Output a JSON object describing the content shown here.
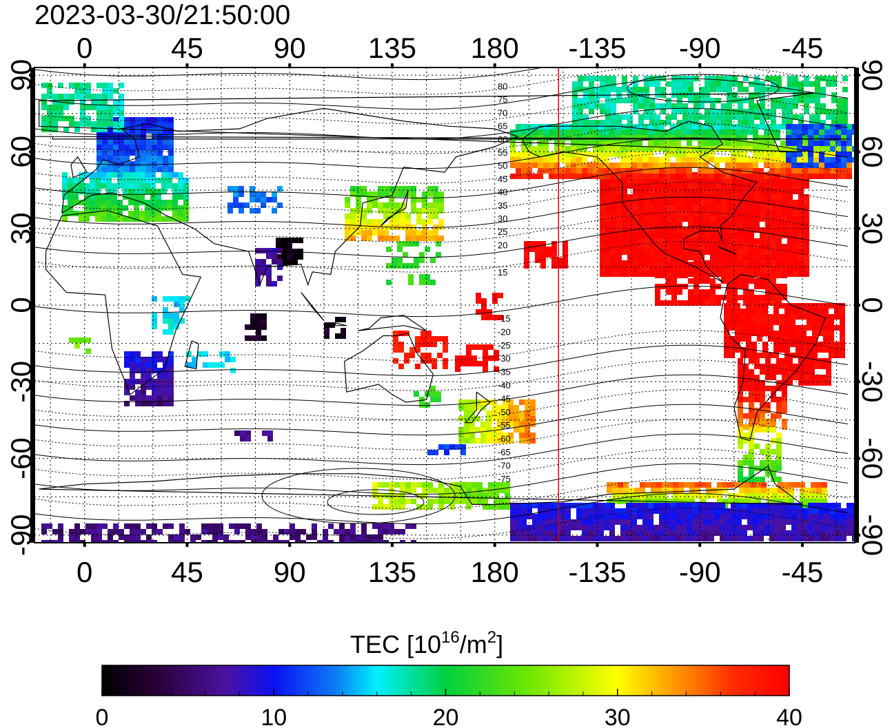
{
  "title": "2023-03-30/21:50:00",
  "map": {
    "lon_ticks": [
      0,
      45,
      90,
      135,
      180,
      -135,
      -90,
      -45
    ],
    "lat_ticks": [
      90,
      60,
      30,
      0,
      -30,
      -60,
      -90
    ],
    "lon_range": [
      -22,
      338
    ],
    "lat_range": [
      -93,
      93
    ],
    "terminator_lon": -152,
    "terminator_color": "#e00000",
    "grid": "dotted",
    "mag_lat_labels_north": [
      "80",
      "75",
      "70",
      "65",
      "60",
      "55",
      "50",
      "45",
      "40",
      "35",
      "30",
      "25",
      "20",
      "15"
    ],
    "mag_lat_labels_south": [
      "-15",
      "-20",
      "-25",
      "-30",
      "-35",
      "-40",
      "-45",
      "-50",
      "-55",
      "-60",
      "-65",
      "-70",
      "-75"
    ]
  },
  "colorbar": {
    "label_main": "TEC  [10",
    "label_sup1": "16",
    "label_mid": "/m",
    "label_sup2": "2",
    "label_end": "]",
    "ticks": [
      "0",
      "10",
      "20",
      "30",
      "40"
    ],
    "min": 0,
    "max": 40,
    "colormap": "jet-like: black-purple-blue-cyan-green-yellow-orange-red"
  },
  "regions": [
    {
      "name": "north-america",
      "tec": 40
    },
    {
      "name": "south-america",
      "tec": 40
    },
    {
      "name": "europe",
      "tec": 12
    },
    {
      "name": "japan",
      "tec": 30
    },
    {
      "name": "south-africa",
      "tec": 12
    },
    {
      "name": "antarctica",
      "tec": 8
    },
    {
      "name": "arctic-canada",
      "tec": 18
    },
    {
      "name": "new-zealand",
      "tec": 25
    }
  ]
}
